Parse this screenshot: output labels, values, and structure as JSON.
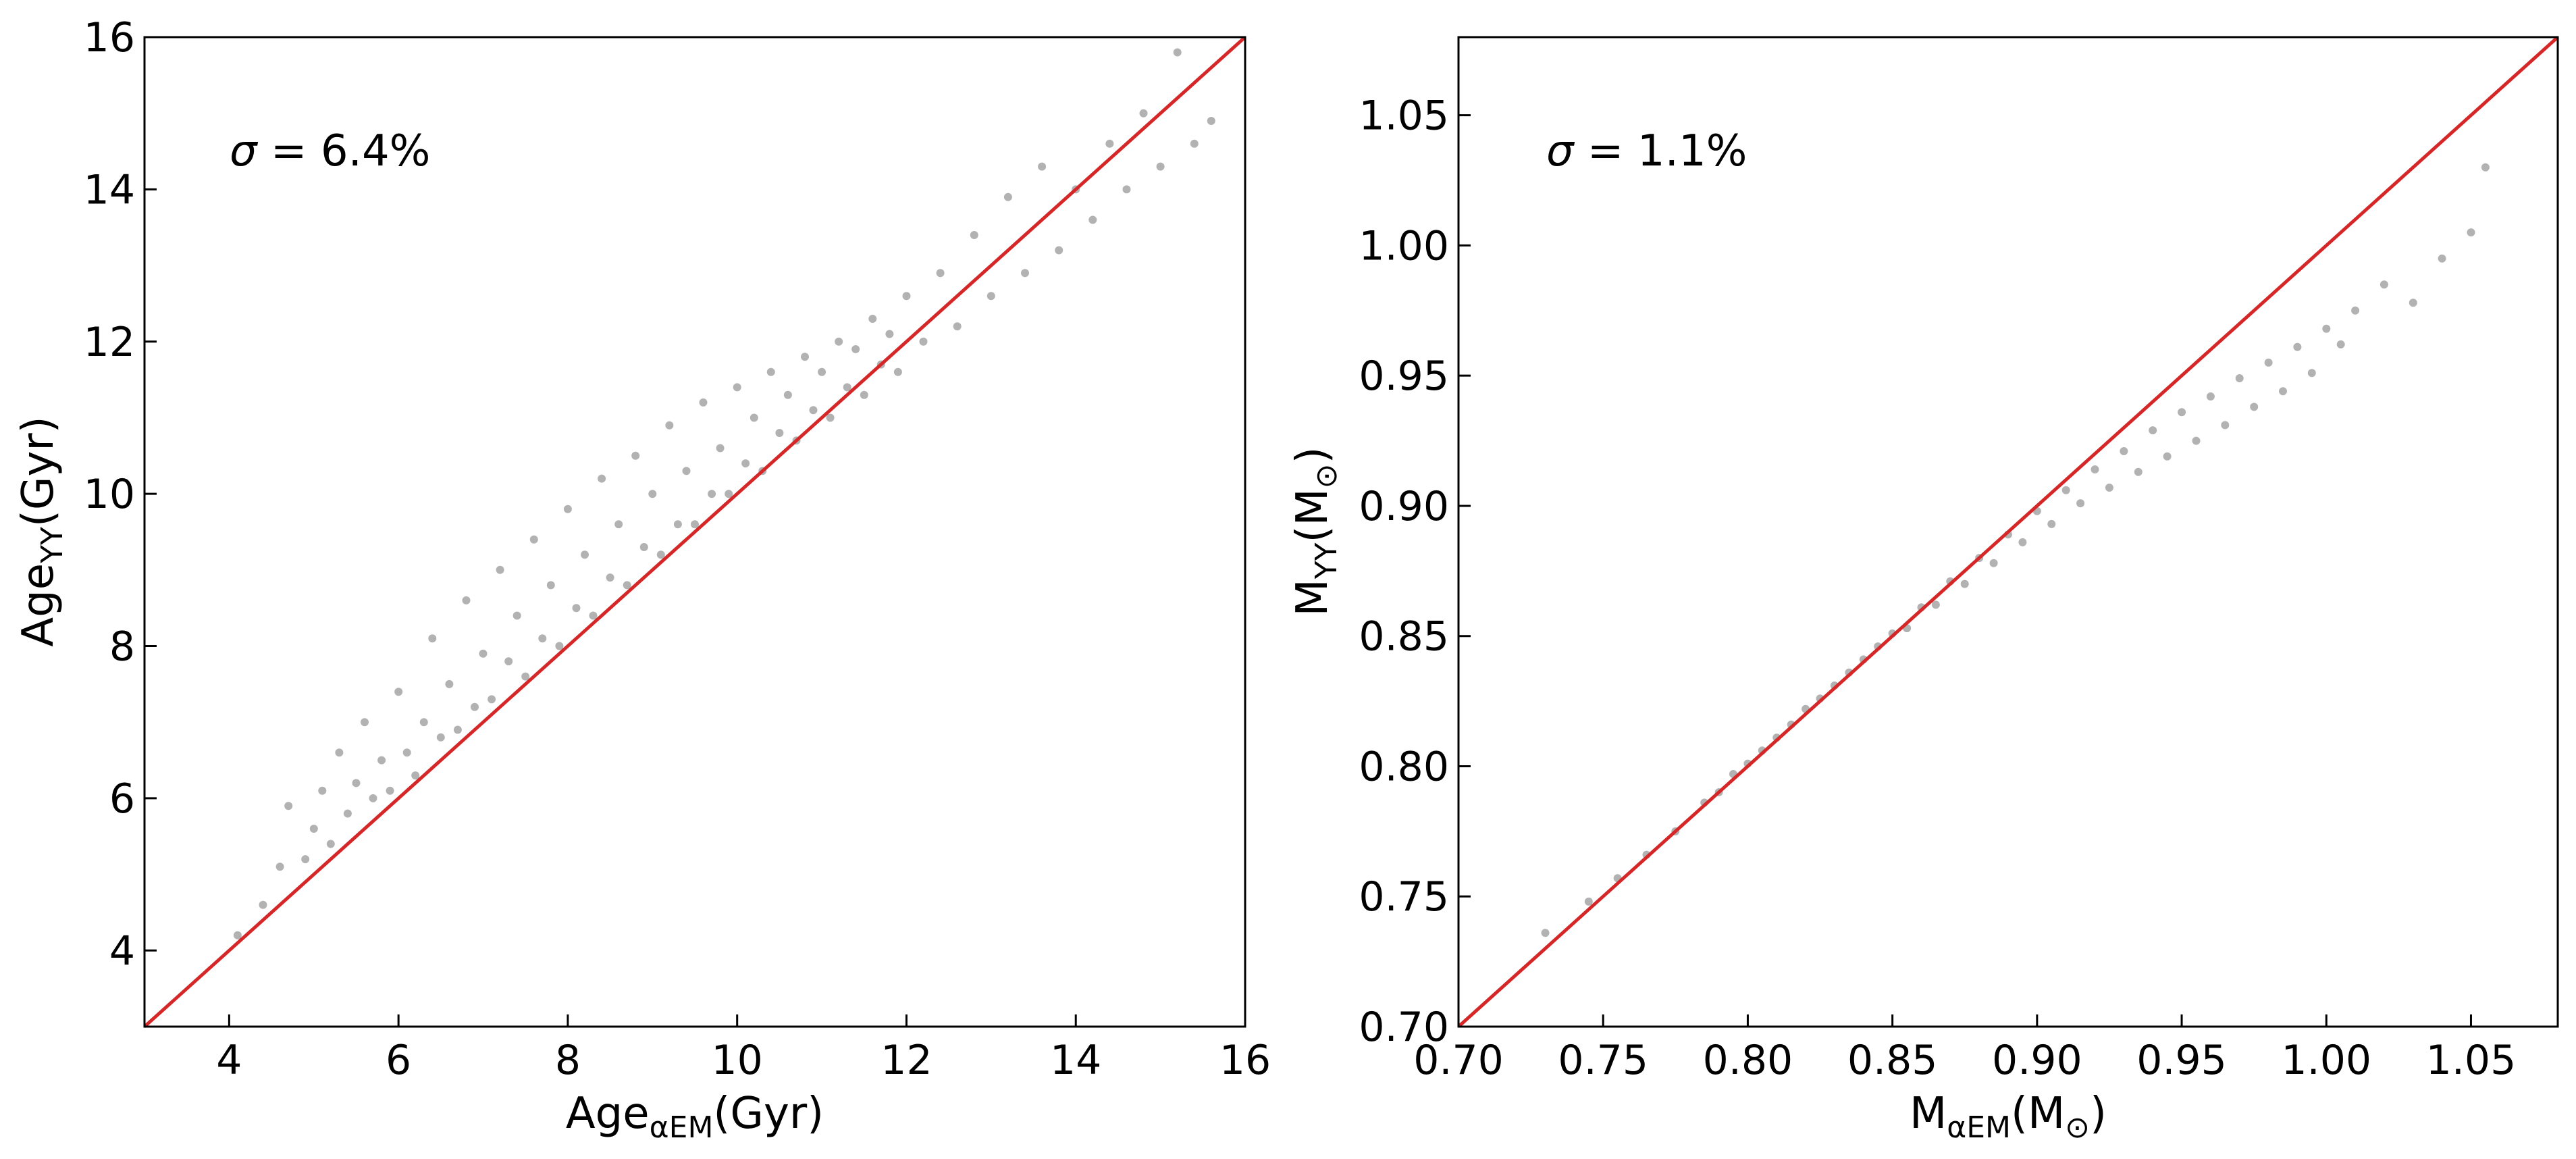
{
  "chart_data": [
    {
      "type": "scatter",
      "panel": "left",
      "xlabel": {
        "main": "Age",
        "sub": "αEM",
        "tail": "(Gyr)"
      },
      "ylabel": {
        "main": "Age",
        "sub": "YY",
        "tail": "(Gyr)"
      },
      "xlim": [
        3,
        16
      ],
      "ylim": [
        3,
        16
      ],
      "xticks": [
        "4",
        "6",
        "8",
        "10",
        "12",
        "14",
        "16"
      ],
      "yticks": [
        "4",
        "6",
        "8",
        "10",
        "12",
        "14",
        "16"
      ],
      "annotation": {
        "symbol": "σ",
        "text": " = 6.4%"
      },
      "reference_line": {
        "x": [
          3,
          16
        ],
        "y": [
          3,
          16
        ],
        "color": "#d62728"
      },
      "point_color": "#000000",
      "point_alpha": 0.3,
      "points": [
        [
          4.1,
          4.2
        ],
        [
          4.4,
          4.6
        ],
        [
          4.6,
          5.1
        ],
        [
          4.7,
          5.9
        ],
        [
          4.9,
          5.2
        ],
        [
          5.0,
          5.6
        ],
        [
          5.1,
          6.1
        ],
        [
          5.2,
          5.4
        ],
        [
          5.3,
          6.6
        ],
        [
          5.4,
          5.8
        ],
        [
          5.5,
          6.2
        ],
        [
          5.6,
          7.0
        ],
        [
          5.7,
          6.0
        ],
        [
          5.8,
          6.5
        ],
        [
          5.9,
          6.1
        ],
        [
          6.0,
          7.4
        ],
        [
          6.1,
          6.6
        ],
        [
          6.2,
          6.3
        ],
        [
          6.3,
          7.0
        ],
        [
          6.4,
          8.1
        ],
        [
          6.5,
          6.8
        ],
        [
          6.6,
          7.5
        ],
        [
          6.7,
          6.9
        ],
        [
          6.8,
          8.6
        ],
        [
          6.9,
          7.2
        ],
        [
          7.0,
          7.9
        ],
        [
          7.1,
          7.3
        ],
        [
          7.2,
          9.0
        ],
        [
          7.3,
          7.8
        ],
        [
          7.4,
          8.4
        ],
        [
          7.5,
          7.6
        ],
        [
          7.6,
          9.4
        ],
        [
          7.7,
          8.1
        ],
        [
          7.8,
          8.8
        ],
        [
          7.9,
          8.0
        ],
        [
          8.0,
          9.8
        ],
        [
          8.1,
          8.5
        ],
        [
          8.2,
          9.2
        ],
        [
          8.3,
          8.4
        ],
        [
          8.4,
          10.2
        ],
        [
          8.5,
          8.9
        ],
        [
          8.6,
          9.6
        ],
        [
          8.7,
          8.8
        ],
        [
          8.8,
          10.5
        ],
        [
          8.9,
          9.3
        ],
        [
          9.0,
          10.0
        ],
        [
          9.1,
          9.2
        ],
        [
          9.2,
          10.9
        ],
        [
          9.3,
          9.6
        ],
        [
          9.4,
          10.3
        ],
        [
          9.5,
          9.6
        ],
        [
          9.6,
          11.2
        ],
        [
          9.7,
          10.0
        ],
        [
          9.8,
          10.6
        ],
        [
          9.9,
          10.0
        ],
        [
          10.0,
          11.4
        ],
        [
          10.1,
          10.4
        ],
        [
          10.2,
          11.0
        ],
        [
          10.3,
          10.3
        ],
        [
          10.4,
          11.6
        ],
        [
          10.5,
          10.8
        ],
        [
          10.6,
          11.3
        ],
        [
          10.7,
          10.7
        ],
        [
          10.8,
          11.8
        ],
        [
          10.9,
          11.1
        ],
        [
          11.0,
          11.6
        ],
        [
          11.1,
          11.0
        ],
        [
          11.2,
          12.0
        ],
        [
          11.3,
          11.4
        ],
        [
          11.4,
          11.9
        ],
        [
          11.5,
          11.3
        ],
        [
          11.6,
          12.3
        ],
        [
          11.7,
          11.7
        ],
        [
          11.8,
          12.1
        ],
        [
          11.9,
          11.6
        ],
        [
          12.0,
          12.6
        ],
        [
          12.2,
          12.0
        ],
        [
          12.4,
          12.9
        ],
        [
          12.6,
          12.2
        ],
        [
          12.8,
          13.4
        ],
        [
          13.0,
          12.6
        ],
        [
          13.2,
          13.9
        ],
        [
          13.4,
          12.9
        ],
        [
          13.6,
          14.3
        ],
        [
          13.8,
          13.2
        ],
        [
          14.0,
          14.0
        ],
        [
          14.2,
          13.6
        ],
        [
          14.4,
          14.6
        ],
        [
          14.6,
          14.0
        ],
        [
          14.8,
          15.0
        ],
        [
          15.0,
          14.3
        ],
        [
          15.2,
          15.8
        ],
        [
          15.4,
          14.6
        ],
        [
          15.6,
          14.9
        ]
      ]
    },
    {
      "type": "scatter",
      "panel": "right",
      "xlabel": {
        "main": "M",
        "sub": "αEM",
        "tail": "(M",
        "sub2": "⊙",
        "close": ")"
      },
      "ylabel": {
        "main": "M",
        "sub": "YY",
        "tail": "(M",
        "sub2": "⊙",
        "close": ")"
      },
      "xlim": [
        0.7,
        1.08
      ],
      "ylim": [
        0.7,
        1.08
      ],
      "xticks": [
        "0.70",
        "0.75",
        "0.80",
        "0.85",
        "0.90",
        "0.95",
        "1.00",
        "1.05"
      ],
      "yticks": [
        "0.70",
        "0.75",
        "0.80",
        "0.85",
        "0.90",
        "0.95",
        "1.00",
        "1.05"
      ],
      "annotation": {
        "symbol": "σ",
        "text": " = 1.1%"
      },
      "reference_line": {
        "x": [
          0.7,
          1.08
        ],
        "y": [
          0.7,
          1.08
        ],
        "color": "#d62728"
      },
      "point_color": "#000000",
      "point_alpha": 0.3,
      "points": [
        [
          0.73,
          0.736
        ],
        [
          0.745,
          0.748
        ],
        [
          0.755,
          0.757
        ],
        [
          0.765,
          0.766
        ],
        [
          0.775,
          0.775
        ],
        [
          0.785,
          0.786
        ],
        [
          0.79,
          0.79
        ],
        [
          0.795,
          0.797
        ],
        [
          0.8,
          0.801
        ],
        [
          0.805,
          0.806
        ],
        [
          0.81,
          0.811
        ],
        [
          0.815,
          0.816
        ],
        [
          0.82,
          0.822
        ],
        [
          0.825,
          0.826
        ],
        [
          0.83,
          0.831
        ],
        [
          0.835,
          0.836
        ],
        [
          0.84,
          0.841
        ],
        [
          0.845,
          0.846
        ],
        [
          0.85,
          0.851
        ],
        [
          0.855,
          0.853
        ],
        [
          0.86,
          0.861
        ],
        [
          0.865,
          0.862
        ],
        [
          0.87,
          0.871
        ],
        [
          0.875,
          0.87
        ],
        [
          0.88,
          0.88
        ],
        [
          0.885,
          0.878
        ],
        [
          0.89,
          0.889
        ],
        [
          0.895,
          0.886
        ],
        [
          0.9,
          0.898
        ],
        [
          0.905,
          0.893
        ],
        [
          0.91,
          0.906
        ],
        [
          0.915,
          0.901
        ],
        [
          0.92,
          0.914
        ],
        [
          0.925,
          0.907
        ],
        [
          0.93,
          0.921
        ],
        [
          0.935,
          0.913
        ],
        [
          0.94,
          0.929
        ],
        [
          0.945,
          0.919
        ],
        [
          0.95,
          0.936
        ],
        [
          0.955,
          0.925
        ],
        [
          0.96,
          0.942
        ],
        [
          0.965,
          0.931
        ],
        [
          0.97,
          0.949
        ],
        [
          0.975,
          0.938
        ],
        [
          0.98,
          0.955
        ],
        [
          0.985,
          0.944
        ],
        [
          0.99,
          0.961
        ],
        [
          0.995,
          0.951
        ],
        [
          1.0,
          0.968
        ],
        [
          1.005,
          0.962
        ],
        [
          1.01,
          0.975
        ],
        [
          1.02,
          0.985
        ],
        [
          1.03,
          0.978
        ],
        [
          1.04,
          0.995
        ],
        [
          1.05,
          1.005
        ],
        [
          1.055,
          1.03
        ]
      ]
    }
  ]
}
